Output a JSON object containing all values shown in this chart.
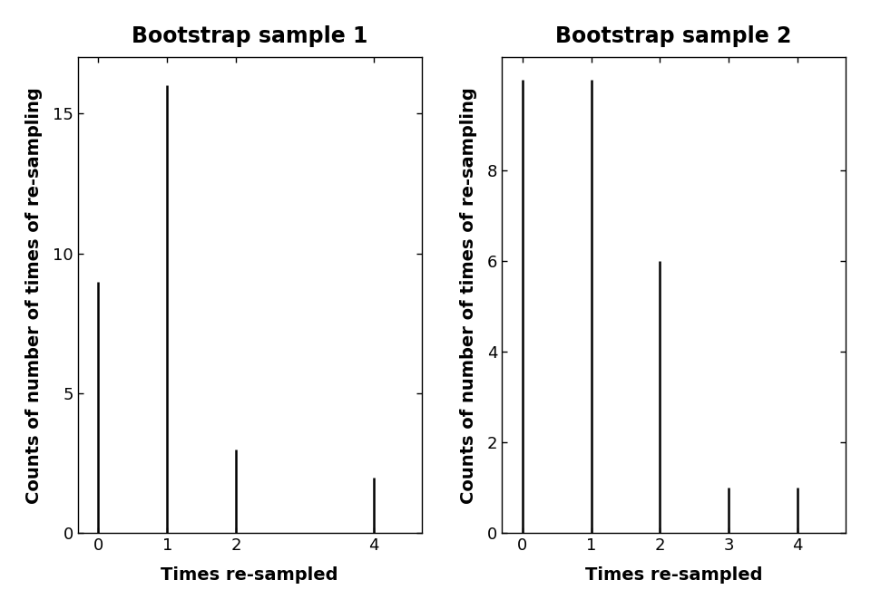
{
  "plot1": {
    "title": "Bootstrap sample 1",
    "xlabel": "Times re-sampled",
    "ylabel": "Counts of number of times of re-sampling",
    "x_values": [
      0,
      1,
      2,
      4
    ],
    "y_values": [
      9,
      16,
      3,
      2
    ],
    "xlim": [
      -0.3,
      4.7
    ],
    "ylim": [
      0,
      17.0
    ],
    "xticks": [
      0,
      1,
      2,
      4
    ],
    "yticks": [
      0,
      5,
      10,
      15
    ]
  },
  "plot2": {
    "title": "Bootstrap sample 2",
    "xlabel": "Times re-sampled",
    "ylabel": "Counts of number of times of re-sampling",
    "x_values": [
      0,
      1,
      2,
      3,
      4
    ],
    "y_values": [
      10,
      10,
      6,
      1,
      1
    ],
    "xlim": [
      -0.3,
      4.7
    ],
    "ylim": [
      0,
      10.5
    ],
    "xticks": [
      0,
      1,
      2,
      3,
      4
    ],
    "yticks": [
      0,
      2,
      4,
      6,
      8
    ]
  },
  "background_color": "#ffffff",
  "line_color": "black",
  "title_fontsize": 17,
  "label_fontsize": 14,
  "tick_fontsize": 13
}
